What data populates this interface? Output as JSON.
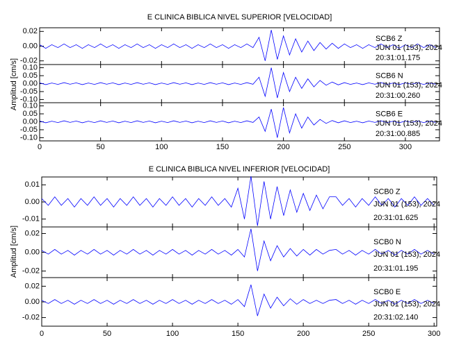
{
  "chart_data": [
    {
      "type": "line",
      "title": "E CLINICA BIBLICA NIVEL SUPERIOR [VELOCIDAD]",
      "ylabel": "Amplitud [cm/s]",
      "xlim": [
        0,
        328
      ],
      "xticks": [
        0,
        50,
        100,
        150,
        200,
        250,
        300
      ],
      "x": [
        0,
        5,
        10,
        15,
        20,
        25,
        30,
        35,
        40,
        45,
        50,
        55,
        60,
        65,
        70,
        75,
        80,
        85,
        90,
        95,
        100,
        105,
        110,
        115,
        120,
        125,
        130,
        135,
        140,
        145,
        150,
        155,
        160,
        165,
        170,
        175,
        180,
        185,
        190,
        195,
        200,
        205,
        210,
        215,
        220,
        225,
        230,
        235,
        240,
        245,
        250,
        255,
        260,
        265,
        270,
        275,
        280,
        285,
        290,
        295,
        300,
        305,
        310,
        315,
        320,
        325
      ],
      "panels": [
        {
          "ylim": [
            -0.025,
            0.025
          ],
          "yticks": [
            0.02,
            {
              "value": 0,
              "label": "0.00"
            },
            -0.02
          ],
          "series": [
            {
              "name": "SCB6   Z",
              "color": "#0000ff",
              "values": [
                0.002,
                -0.003,
                0.002,
                -0.002,
                0.003,
                -0.002,
                0.002,
                -0.003,
                0.002,
                -0.002,
                0.003,
                -0.002,
                0.002,
                -0.003,
                0.002,
                -0.002,
                0.003,
                -0.002,
                0.002,
                -0.003,
                0.002,
                -0.002,
                0.003,
                -0.002,
                0.002,
                -0.003,
                0.002,
                -0.002,
                0.003,
                -0.002,
                0.002,
                -0.003,
                0.002,
                -0.002,
                0.003,
                -0.002,
                0.012,
                -0.02,
                0.022,
                -0.018,
                0.014,
                -0.012,
                0.01,
                -0.008,
                0.007,
                -0.006,
                0.005,
                -0.004,
                0.004,
                -0.003,
                0.003,
                -0.002,
                0.002,
                -0.003,
                0.002,
                -0.002,
                0.003,
                -0.002,
                0.002,
                -0.003,
                0.002,
                -0.002,
                0.003,
                -0.002,
                0.002,
                -0.002
              ]
            }
          ],
          "annotations": [
            "JUN 01 (153), 2024",
            "20:31:01.175"
          ]
        },
        {
          "ylim": [
            -0.12,
            0.12
          ],
          "yticks": [
            {
              "value": 0.1,
              "label": "0.10"
            },
            0.05,
            {
              "value": 0,
              "label": "0.00"
            },
            -0.05,
            {
              "value": -0.1,
              "label": "-0.10"
            }
          ],
          "series": [
            {
              "name": "SCB6   N",
              "color": "#0000ff",
              "values": [
                0.005,
                -0.006,
                0.004,
                -0.005,
                0.006,
                -0.004,
                0.005,
                -0.006,
                0.004,
                -0.005,
                0.006,
                -0.004,
                0.005,
                -0.006,
                0.004,
                -0.005,
                0.006,
                -0.004,
                0.005,
                -0.006,
                0.004,
                -0.005,
                0.006,
                -0.004,
                0.005,
                -0.006,
                0.004,
                -0.005,
                0.006,
                -0.004,
                0.005,
                -0.006,
                0.004,
                -0.005,
                0.006,
                -0.004,
                0.04,
                -0.08,
                0.1,
                -0.09,
                0.07,
                -0.05,
                0.04,
                -0.03,
                0.03,
                -0.02,
                0.02,
                -0.01,
                0.01,
                -0.008,
                0.006,
                -0.005,
                0.004,
                -0.006,
                0.005,
                -0.004,
                0.006,
                -0.005,
                0.004,
                -0.006,
                0.005,
                -0.004,
                0.005,
                -0.005,
                0.004,
                -0.004
              ]
            }
          ],
          "annotations": [
            "JUN 01 (153), 2024",
            "20:31:00.260"
          ]
        },
        {
          "ylim": [
            -0.12,
            0.12
          ],
          "yticks": [
            {
              "value": 0.1,
              "label": "0.10"
            },
            0.05,
            {
              "value": 0,
              "label": "0.00"
            },
            -0.05,
            {
              "value": -0.1,
              "label": "-0.10"
            }
          ],
          "series": [
            {
              "name": "SCB6   E",
              "color": "#0000ff",
              "values": [
                0.005,
                -0.006,
                0.004,
                -0.005,
                0.006,
                -0.004,
                0.005,
                -0.006,
                0.004,
                -0.005,
                0.006,
                -0.004,
                0.005,
                -0.006,
                0.004,
                -0.005,
                0.006,
                -0.004,
                0.005,
                -0.006,
                0.004,
                -0.005,
                0.006,
                -0.004,
                0.005,
                -0.006,
                0.004,
                -0.005,
                0.006,
                -0.004,
                0.005,
                -0.006,
                0.004,
                -0.005,
                0.006,
                -0.004,
                0.03,
                -0.06,
                0.08,
                -0.1,
                0.09,
                -0.07,
                0.05,
                -0.04,
                0.03,
                -0.02,
                0.015,
                -0.01,
                0.008,
                -0.006,
                0.006,
                -0.005,
                0.004,
                -0.006,
                0.005,
                -0.004,
                0.006,
                -0.005,
                0.004,
                -0.006,
                0.005,
                -0.004,
                0.005,
                -0.005,
                0.004,
                -0.004
              ]
            }
          ],
          "annotations": [
            "JUN 01 (153), 2024",
            "20:31:00.885"
          ]
        }
      ]
    },
    {
      "type": "line",
      "title": "E CLINICA BIBLICA NIVEL INFERIOR [VELOCIDAD]",
      "ylabel": "Amplitud [cm/s]",
      "xlim": [
        0,
        302
      ],
      "xticks": [
        0,
        50,
        100,
        150,
        200,
        250,
        300
      ],
      "x": [
        0,
        5,
        10,
        15,
        20,
        25,
        30,
        35,
        40,
        45,
        50,
        55,
        60,
        65,
        70,
        75,
        80,
        85,
        90,
        95,
        100,
        105,
        110,
        115,
        120,
        125,
        130,
        135,
        140,
        145,
        150,
        155,
        160,
        165,
        170,
        175,
        180,
        185,
        190,
        195,
        200,
        205,
        210,
        215,
        220,
        225,
        230,
        235,
        240,
        245,
        250,
        255,
        260,
        265,
        270,
        275,
        280,
        285,
        290,
        295,
        300
      ],
      "panels": [
        {
          "ylim": [
            -0.0146,
            0.0146
          ],
          "yticks": [
            0.01,
            {
              "value": 0,
              "label": "0.00"
            },
            -0.01
          ],
          "series": [
            {
              "name": "SCB0   Z",
              "color": "#0000ff",
              "values": [
                0.002,
                -0.002,
                0.003,
                -0.002,
                0.002,
                -0.003,
                0.002,
                -0.002,
                0.003,
                -0.002,
                0.002,
                -0.003,
                0.002,
                -0.002,
                0.003,
                -0.002,
                0.002,
                -0.003,
                0.002,
                -0.002,
                0.003,
                -0.002,
                0.002,
                -0.003,
                0.002,
                -0.002,
                0.003,
                -0.002,
                0.002,
                -0.003,
                0.008,
                -0.01,
                0.015,
                -0.014,
                0.012,
                -0.01,
                0.009,
                -0.008,
                0.007,
                -0.006,
                0.005,
                -0.005,
                0.004,
                -0.004,
                0.003,
                0.003,
                -0.002,
                0.002,
                -0.003,
                0.002,
                -0.002,
                0.003,
                -0.002,
                0.002,
                -0.003,
                0.002,
                -0.002,
                0.003,
                -0.002,
                0.002,
                -0.002
              ]
            }
          ],
          "annotations": [
            "JUN 01 (153), 2024",
            "20:31:01.625"
          ]
        },
        {
          "ylim": [
            -0.027,
            0.027
          ],
          "yticks": [
            0.02,
            {
              "value": 0,
              "label": "0.00"
            },
            -0.02
          ],
          "series": [
            {
              "name": "SCB0   N",
              "color": "#0000ff",
              "values": [
                0.002,
                -0.002,
                0.003,
                -0.002,
                0.002,
                -0.003,
                0.002,
                -0.002,
                0.003,
                -0.002,
                0.002,
                -0.003,
                0.002,
                -0.002,
                0.003,
                -0.002,
                0.002,
                -0.003,
                0.002,
                -0.002,
                0.003,
                -0.002,
                0.002,
                -0.003,
                0.002,
                -0.002,
                0.003,
                -0.002,
                0.002,
                -0.003,
                0.003,
                -0.005,
                0.025,
                -0.02,
                0.012,
                -0.009,
                0.007,
                -0.005,
                0.004,
                -0.004,
                0.003,
                -0.003,
                0.003,
                -0.002,
                0.002,
                0.003,
                -0.002,
                0.002,
                -0.003,
                0.002,
                -0.002,
                0.003,
                -0.002,
                0.002,
                -0.003,
                0.002,
                -0.002,
                0.003,
                -0.002,
                0.002,
                -0.002
              ]
            }
          ],
          "annotations": [
            "JUN 01 (153), 2024",
            "20:31:01.195"
          ]
        },
        {
          "ylim": [
            -0.031,
            0.031
          ],
          "yticks": [
            0.02,
            {
              "value": 0,
              "label": "0.00"
            },
            -0.02
          ],
          "series": [
            {
              "name": "SCB0   E",
              "color": "#0000ff",
              "values": [
                0.002,
                -0.002,
                0.003,
                -0.002,
                0.002,
                -0.003,
                0.002,
                -0.002,
                0.003,
                -0.002,
                0.002,
                -0.003,
                0.002,
                -0.002,
                0.003,
                -0.002,
                0.002,
                -0.003,
                0.002,
                -0.002,
                0.003,
                -0.002,
                0.002,
                -0.003,
                0.002,
                -0.002,
                0.003,
                -0.002,
                0.002,
                -0.003,
                0.003,
                -0.006,
                0.022,
                -0.018,
                0.01,
                -0.008,
                0.006,
                -0.005,
                0.004,
                -0.003,
                0.003,
                -0.002,
                0.002,
                -0.002,
                0.002,
                0.003,
                -0.002,
                0.002,
                -0.003,
                0.002,
                -0.002,
                0.003,
                -0.002,
                0.002,
                -0.003,
                0.002,
                -0.002,
                0.003,
                -0.002,
                0.002,
                -0.002
              ]
            }
          ],
          "annotations": [
            "JUN 01 (153), 2024",
            "20:31:02.140"
          ]
        }
      ]
    }
  ]
}
